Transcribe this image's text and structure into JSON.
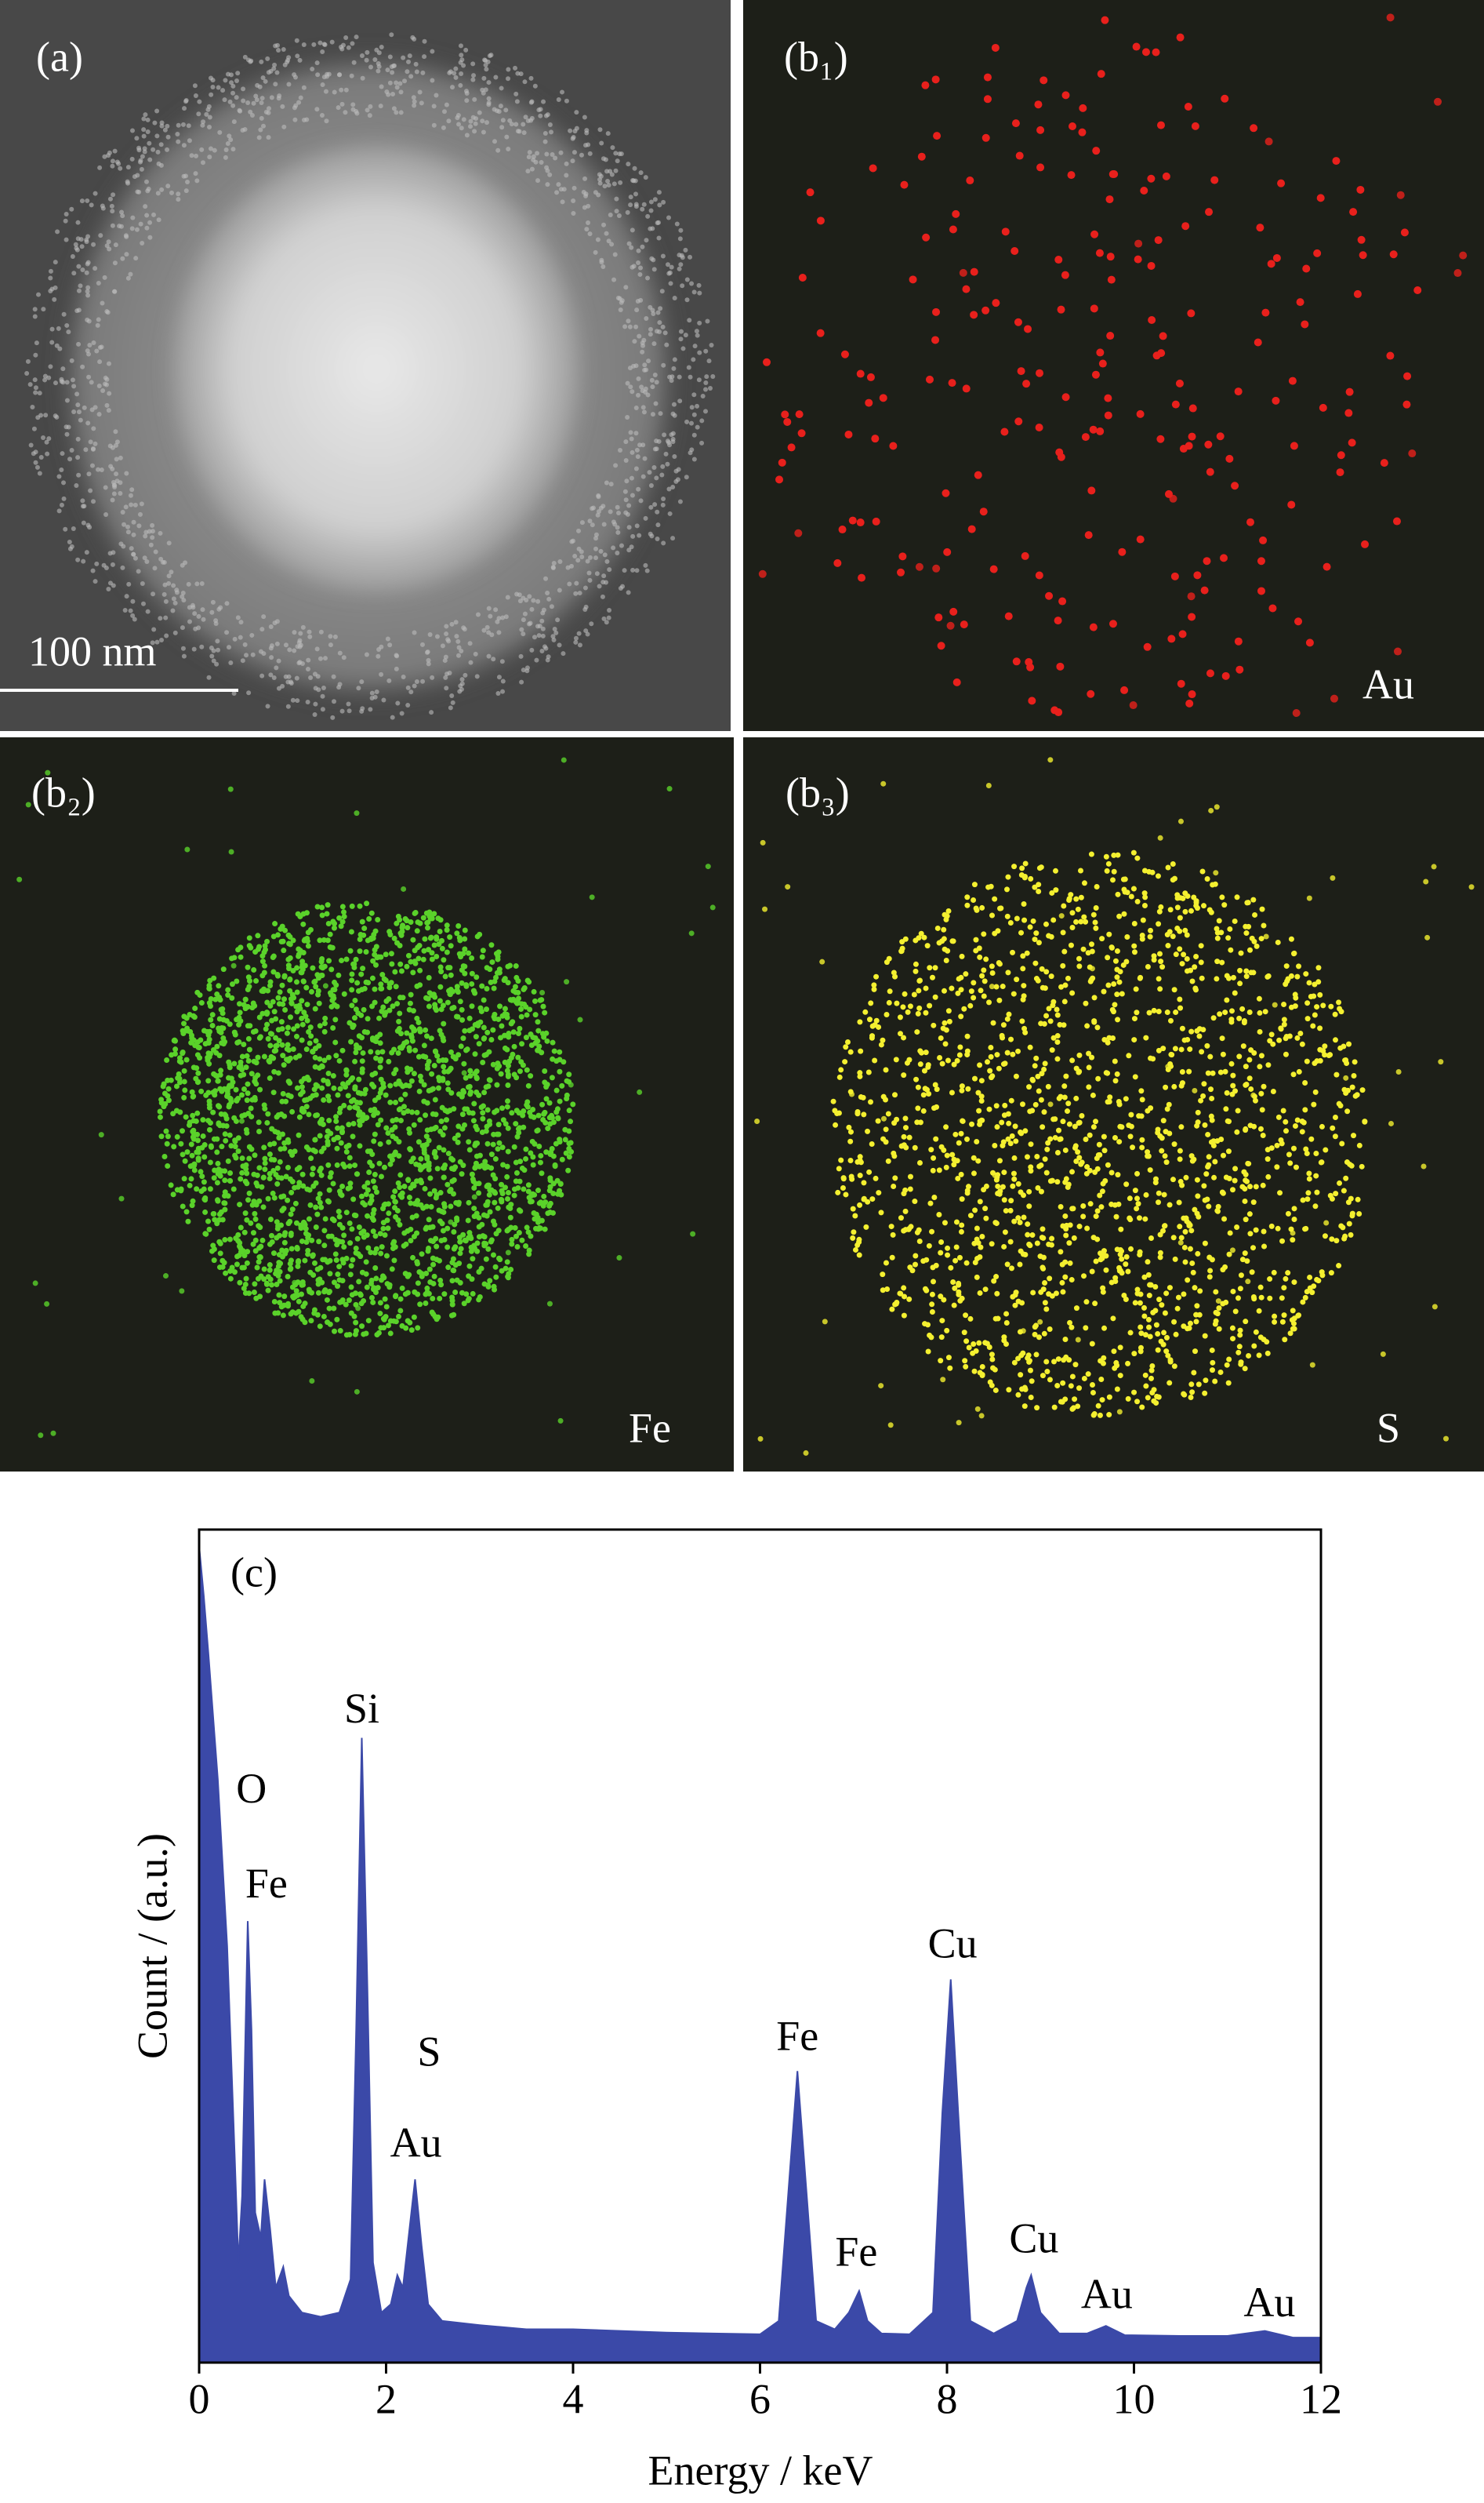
{
  "panels": [
    {
      "label": "(a)",
      "scale_bar": "100 nm"
    },
    {
      "label": "(b₁)",
      "element": "Au"
    },
    {
      "label": "(b₂)",
      "element": "Fe"
    },
    {
      "label": "(b₃)",
      "element": "S"
    }
  ],
  "chart_data": {
    "type": "area",
    "panel_label": "(c)",
    "color": "#3b49a8",
    "x_label": "Energy / keV",
    "y_label": "Count / (a.u.)",
    "x": [
      0,
      0.05,
      0.1,
      0.2,
      0.3,
      0.38,
      0.42,
      0.46,
      0.52,
      0.56,
      0.6,
      0.66,
      0.7,
      0.76,
      0.82,
      0.9,
      0.96,
      1.1,
      1.3,
      1.5,
      1.62,
      1.68,
      1.74,
      1.8,
      1.86,
      1.95,
      2.05,
      2.12,
      2.18,
      2.24,
      2.31,
      2.38,
      2.45,
      2.6,
      3.0,
      3.5,
      4.0,
      4.5,
      5.0,
      5.5,
      6.0,
      6.2,
      6.3,
      6.4,
      6.5,
      6.6,
      6.8,
      6.95,
      7.06,
      7.15,
      7.3,
      7.6,
      7.85,
      7.95,
      8.04,
      8.12,
      8.25,
      8.5,
      8.75,
      8.85,
      8.9,
      9.0,
      9.2,
      9.5,
      9.7,
      9.9,
      10.5,
      11.0,
      11.4,
      11.7,
      12
    ],
    "values": [
      98,
      92,
      85,
      70,
      50,
      25,
      12,
      20,
      53,
      40,
      18,
      15,
      22,
      16,
      9,
      11.5,
      8,
      6,
      5.5,
      6,
      10,
      40,
      75,
      45,
      12,
      6,
      7,
      10.5,
      9,
      15,
      22,
      14,
      7,
      5,
      4.5,
      4,
      4,
      3.8,
      3.6,
      3.5,
      3.4,
      5,
      20,
      35,
      20,
      5,
      4,
      6,
      8.6,
      5,
      3.5,
      3.4,
      6,
      30,
      46,
      30,
      5,
      3.5,
      5,
      9,
      10.5,
      6,
      3.5,
      3.5,
      4.4,
      3.3,
      3.2,
      3.2,
      3.8,
      3,
      3
    ],
    "xlim": [
      0,
      12
    ],
    "xticks": [
      0,
      2,
      4,
      6,
      8,
      10,
      12
    ],
    "ylim": [
      0,
      100
    ],
    "annotations": [
      {
        "text": "O",
        "x": 0.56,
        "y": 68.4
      },
      {
        "text": "Fe",
        "x": 0.72,
        "y": 57
      },
      {
        "text": "Si",
        "x": 1.74,
        "y": 78
      },
      {
        "text": "S",
        "x": 2.46,
        "y": 36.8
      },
      {
        "text": "Au",
        "x": 2.32,
        "y": 25.9
      },
      {
        "text": "Fe",
        "x": 6.4,
        "y": 38.7
      },
      {
        "text": "Fe",
        "x": 7.03,
        "y": 12.8
      },
      {
        "text": "Cu",
        "x": 8.06,
        "y": 49.8
      },
      {
        "text": "Cu",
        "x": 8.93,
        "y": 14.4
      },
      {
        "text": "Au",
        "x": 9.71,
        "y": 7.7
      },
      {
        "text": "Au",
        "x": 11.45,
        "y": 6.7
      }
    ]
  }
}
